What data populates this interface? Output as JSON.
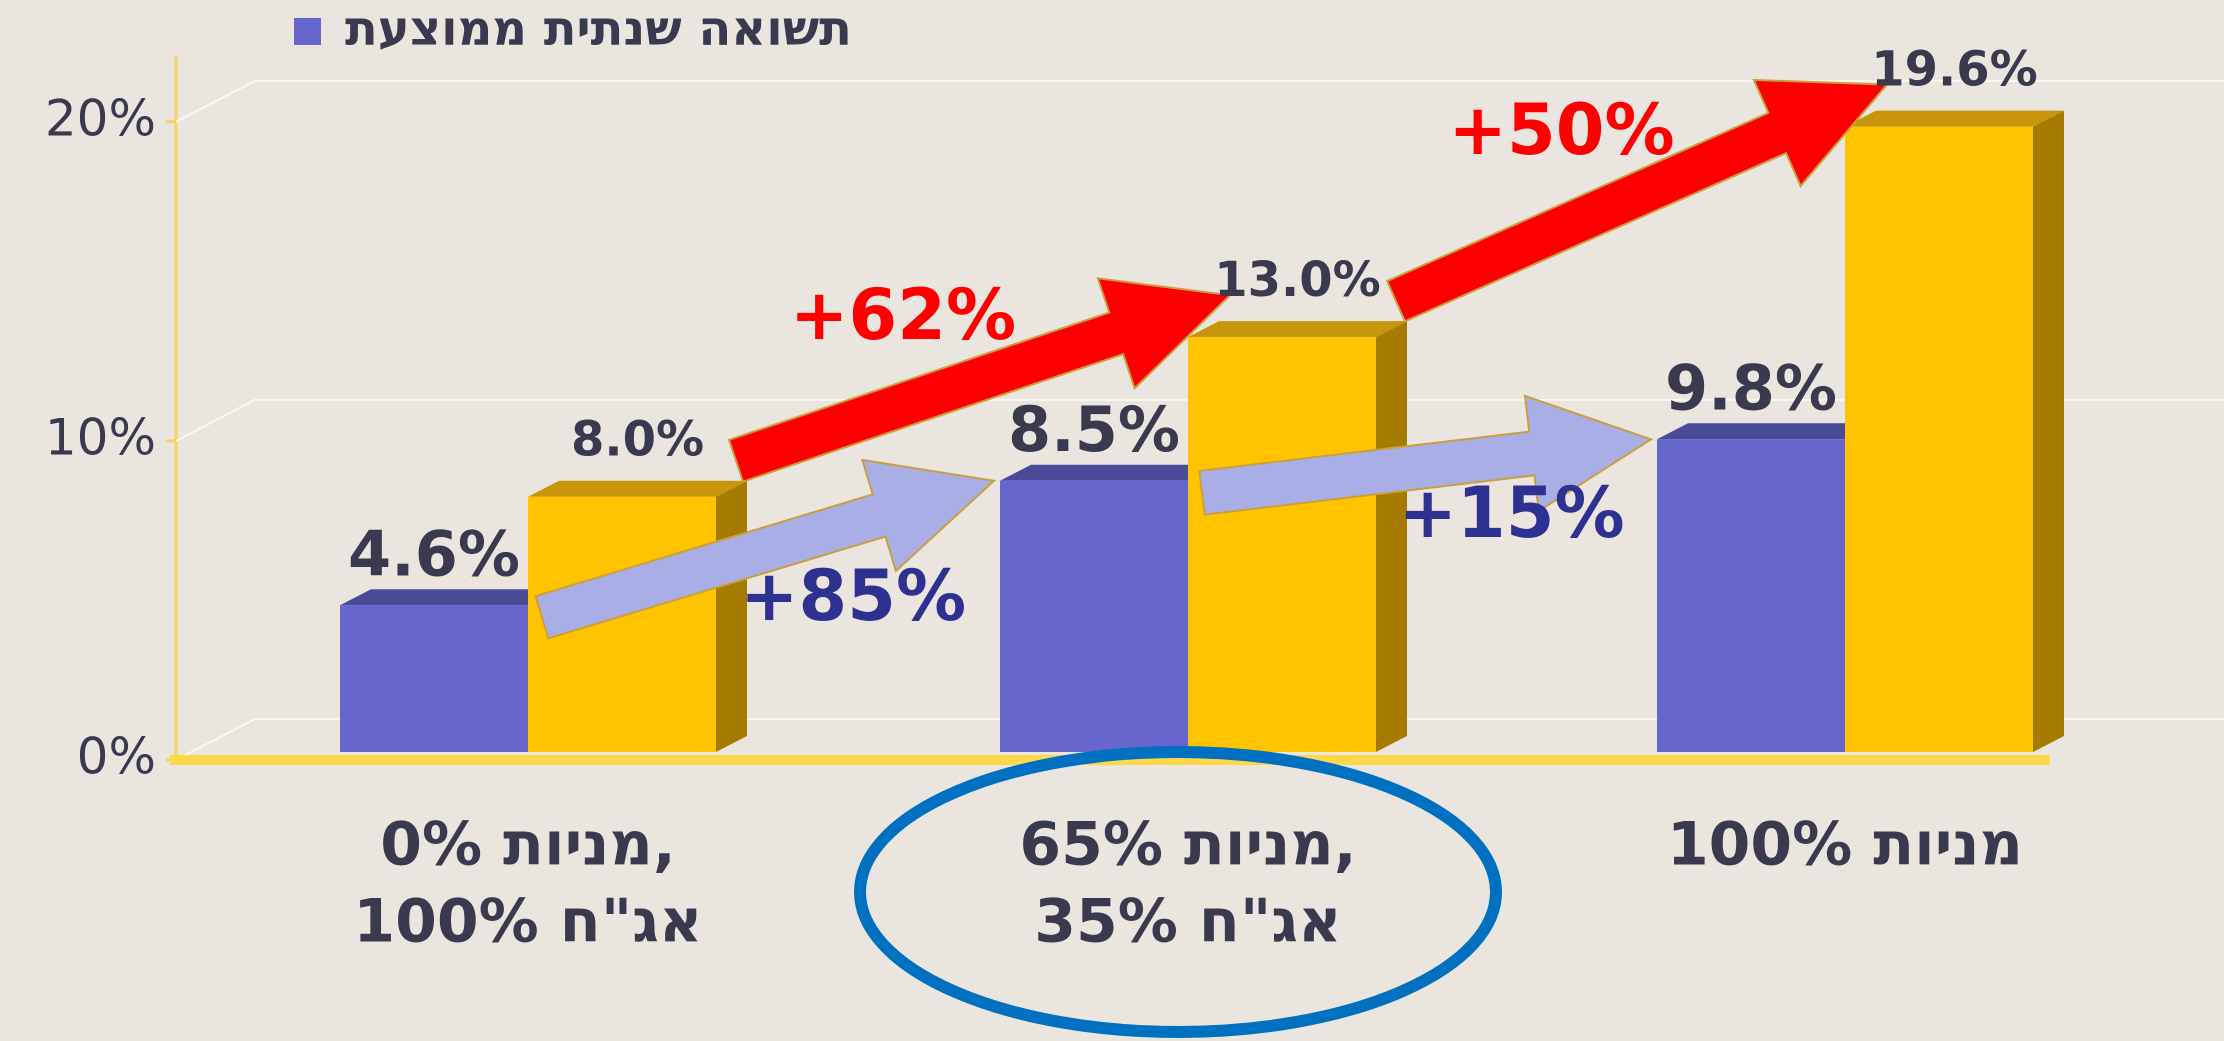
{
  "chart_data": {
    "type": "bar3d",
    "categories": [
      [
        "0% מניות,",
        "100% אג\"ח"
      ],
      [
        "65% מניות,",
        "35% אג\"ח"
      ],
      [
        "100% מניות"
      ]
    ],
    "series": [
      {
        "name": "תשואה שנתית ממוצעת",
        "color": "#6666cc",
        "top_color": "#4a4a99",
        "values": [
          4.6,
          8.5,
          9.8
        ],
        "value_labels": [
          "4.6%",
          "8.5%",
          "9.8%"
        ],
        "changes": [
          "+85%",
          "+15%"
        ],
        "arrow_color": "#aaaee6",
        "change_color": "#2e3192"
      },
      {
        "color": "#ffc300",
        "top_color": "#c8960a",
        "side_color": "#a67c00",
        "values": [
          8.0,
          13.0,
          19.6
        ],
        "value_labels": [
          "8.0%",
          "13.0%",
          "19.6%"
        ],
        "changes": [
          "+62%",
          "+50%"
        ],
        "arrow_color": "#ff0000",
        "change_color": "#ff0000"
      }
    ],
    "ylim": [
      0,
      22
    ],
    "yticks": [
      {
        "value": 0,
        "label": "0%"
      },
      {
        "value": 10,
        "label": "10%"
      },
      {
        "value": 20,
        "label": "20%"
      }
    ],
    "grid": true,
    "highlight_category": 1,
    "highlight_color": "#0070c0"
  }
}
